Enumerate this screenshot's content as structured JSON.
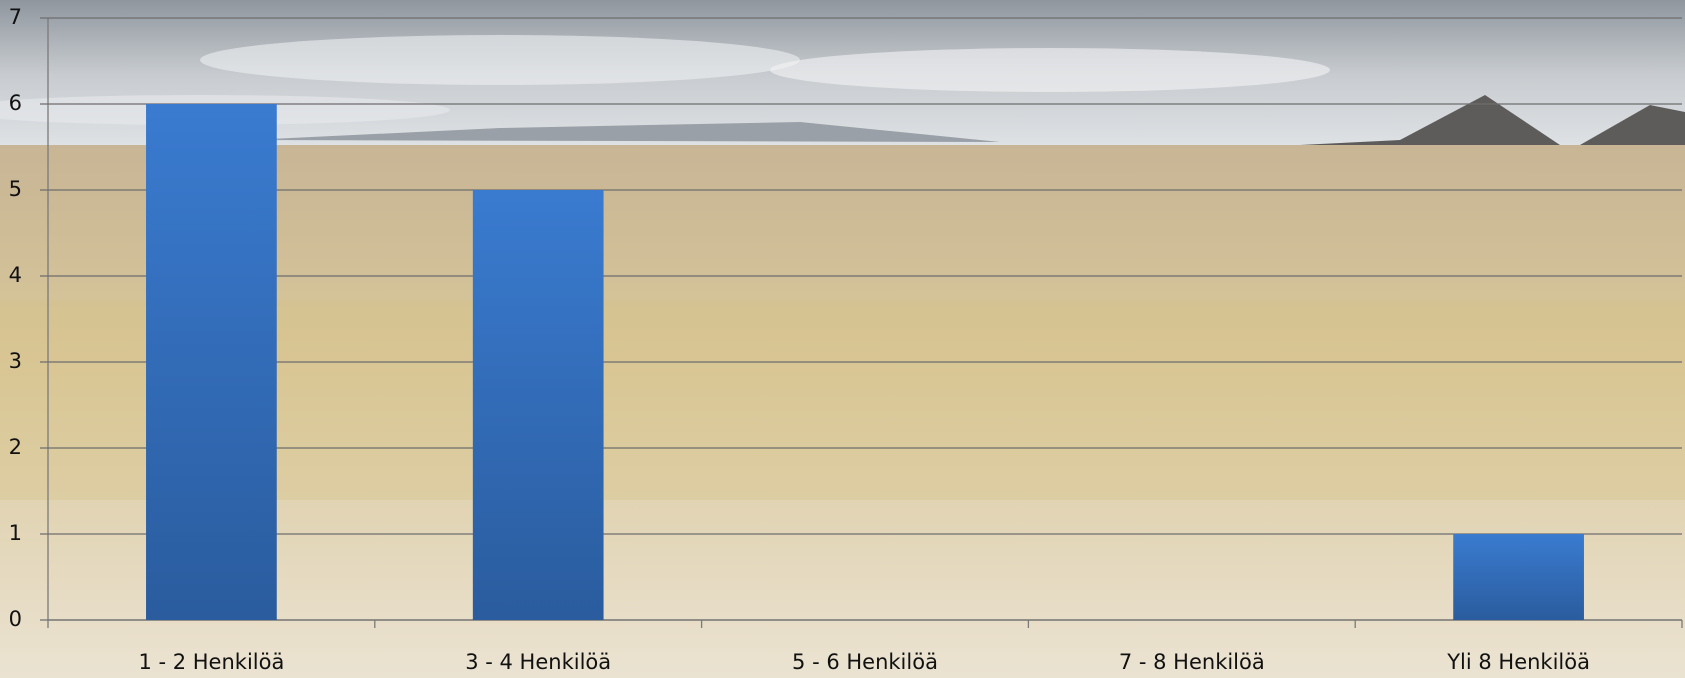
{
  "chart_data": {
    "type": "bar",
    "categories": [
      "1 - 2 Henkilöä",
      "3 - 4 Henkilöä",
      "5 - 6 Henkilöä",
      "7 - 8 Henkilöä",
      "Yli 8 Henkilöä"
    ],
    "values": [
      6,
      5,
      0,
      0,
      1
    ],
    "color": "#3a78c8",
    "ylim": [
      0,
      7
    ],
    "yticks": [
      0,
      1,
      2,
      3,
      4,
      5,
      6,
      7
    ],
    "grid": true
  }
}
